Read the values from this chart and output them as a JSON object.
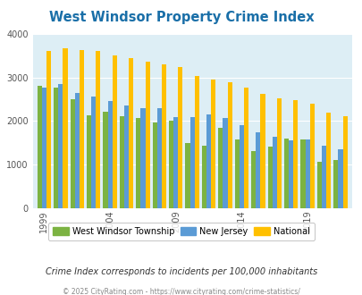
{
  "title": "West Windsor Property Crime Index",
  "title_color": "#1a6fa8",
  "background_color": "#ddeef5",
  "outer_background": "#ffffff",
  "ylim": [
    0,
    4000
  ],
  "yticks": [
    0,
    1000,
    2000,
    3000,
    4000
  ],
  "years": [
    1999,
    2000,
    2001,
    2002,
    2004,
    2005,
    2006,
    2007,
    2009,
    2010,
    2011,
    2012,
    2014,
    2015,
    2016,
    2017,
    2019,
    2020,
    2021
  ],
  "west_windsor": [
    2800,
    2760,
    2500,
    2120,
    2210,
    2110,
    2060,
    1960,
    2010,
    1490,
    1430,
    1850,
    1570,
    1310,
    1420,
    1600,
    1570,
    1070,
    1100
  ],
  "new_jersey": [
    2770,
    2840,
    2640,
    2560,
    2460,
    2350,
    2300,
    2300,
    2080,
    2080,
    2150,
    2060,
    1910,
    1730,
    1630,
    1560,
    1570,
    1430,
    1350
  ],
  "national": [
    3610,
    3660,
    3620,
    3600,
    3510,
    3440,
    3360,
    3300,
    3230,
    3040,
    2950,
    2890,
    2760,
    2620,
    2510,
    2470,
    2400,
    2190,
    2110
  ],
  "colors": {
    "west_windsor": "#7cb342",
    "new_jersey": "#5b9bd5",
    "national": "#ffc000"
  },
  "legend_labels": [
    "West Windsor Township",
    "New Jersey",
    "National"
  ],
  "xtick_years": [
    1999,
    2004,
    2009,
    2014,
    2019
  ],
  "footnote1": "Crime Index corresponds to incidents per 100,000 inhabitants",
  "footnote2": "© 2025 CityRating.com - https://www.cityrating.com/crime-statistics/",
  "footnote1_color": "#333333",
  "footnote2_color": "#888888"
}
